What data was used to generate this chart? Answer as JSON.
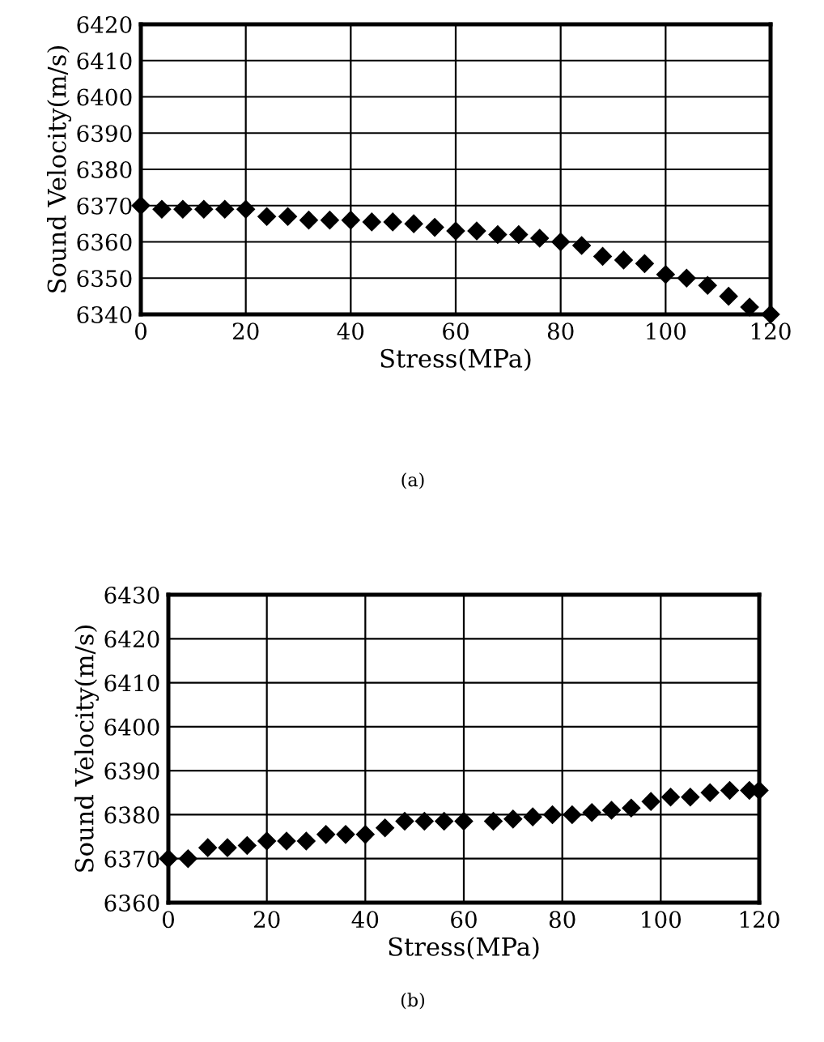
{
  "chart_data": [
    {
      "type": "scatter",
      "xlabel": "Stress(MPa)",
      "ylabel": "Sound Velocity(m/s)",
      "annotations": [
        "(a)"
      ],
      "marker": "diamond",
      "grid": true,
      "xlim": [
        0,
        120
      ],
      "ylim": [
        6340,
        6420
      ],
      "xticks": [
        0,
        20,
        40,
        60,
        80,
        100,
        120
      ],
      "yticks": [
        6340,
        6350,
        6360,
        6370,
        6380,
        6390,
        6400,
        6410,
        6420
      ],
      "series": [
        {
          "color": "#000000",
          "x": [
            0,
            4,
            8,
            12,
            16,
            20,
            24,
            28,
            32,
            36,
            40,
            44,
            48,
            52,
            56,
            60,
            64,
            68,
            72,
            76,
            80,
            84,
            88,
            92,
            96,
            100,
            104,
            108,
            112,
            116,
            120
          ],
          "values": [
            6370,
            6369,
            6369,
            6369,
            6369,
            6369,
            6367,
            6367,
            6366,
            6366,
            6366,
            6365.5,
            6365.5,
            6365,
            6364,
            6363,
            6363,
            6362,
            6362,
            6361,
            6360,
            6359,
            6356,
            6355,
            6354,
            6351,
            6350,
            6348,
            6345,
            6342,
            6340
          ]
        }
      ]
    },
    {
      "type": "scatter",
      "xlabel": "Stress(MPa)",
      "ylabel": "Sound Velocity(m/s)",
      "annotations": [
        "(b)"
      ],
      "marker": "diamond",
      "grid": true,
      "xlim": [
        0,
        120
      ],
      "ylim": [
        6360,
        6430
      ],
      "xticks": [
        0,
        20,
        40,
        60,
        80,
        100,
        120
      ],
      "yticks": [
        6360,
        6370,
        6380,
        6390,
        6400,
        6410,
        6420,
        6430
      ],
      "series": [
        {
          "color": "#000000",
          "x": [
            0,
            4,
            8,
            12,
            16,
            20,
            24,
            28,
            32,
            36,
            40,
            44,
            48,
            52,
            56,
            60,
            66,
            70,
            74,
            78,
            82,
            86,
            90,
            94,
            98,
            102,
            106,
            110,
            114,
            118,
            120
          ],
          "values": [
            6370,
            6370,
            6372.5,
            6372.5,
            6373,
            6374,
            6374,
            6374,
            6375.5,
            6375.5,
            6375.5,
            6377,
            6378.5,
            6378.5,
            6378.5,
            6378.5,
            6378.5,
            6379,
            6379.5,
            6380,
            6380,
            6380.5,
            6381,
            6381.5,
            6383,
            6384,
            6384,
            6385,
            6385.5,
            6385.5,
            6385.5
          ]
        }
      ]
    }
  ]
}
